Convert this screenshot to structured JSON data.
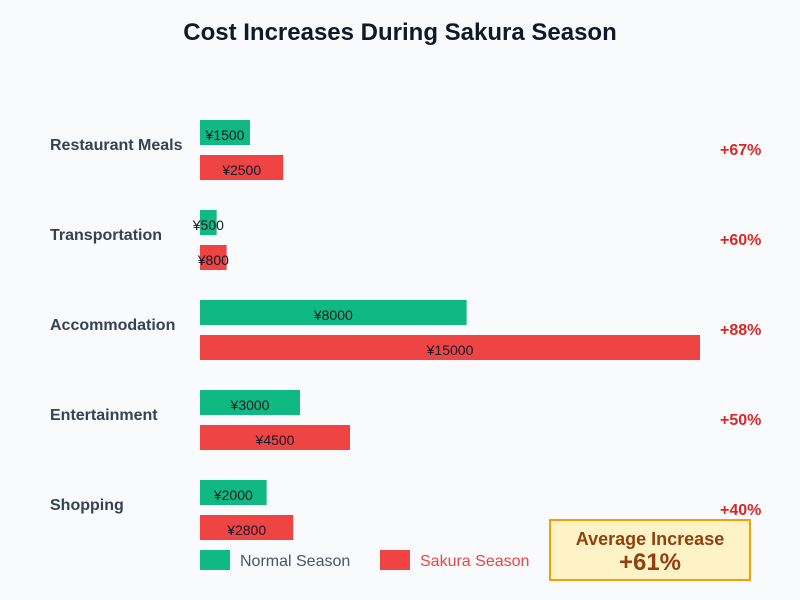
{
  "chart_data": {
    "type": "bar",
    "orientation": "horizontal",
    "title": "Cost Increases During Sakura Season",
    "categories": [
      "Restaurant Meals",
      "Transportation",
      "Accommodation",
      "Entertainment",
      "Shopping"
    ],
    "series": [
      {
        "name": "Normal Season",
        "color": "#10b981",
        "values": [
          1500,
          500,
          8000,
          3000,
          2000
        ]
      },
      {
        "name": "Sakura Season",
        "color": "#ef4444",
        "values": [
          2500,
          800,
          15000,
          4500,
          2800
        ]
      }
    ],
    "value_prefix": "¥",
    "increase_labels": [
      "+67%",
      "+60%",
      "+88%",
      "+50%",
      "+40%"
    ],
    "xlim": [
      0,
      15000
    ],
    "grid": false,
    "legend_placement": "bottom-left",
    "summary": {
      "label": "Average Increase",
      "value": "+61%",
      "background": "#fef3c7",
      "border": "#f59e0b",
      "text_color": "#92400e"
    }
  }
}
